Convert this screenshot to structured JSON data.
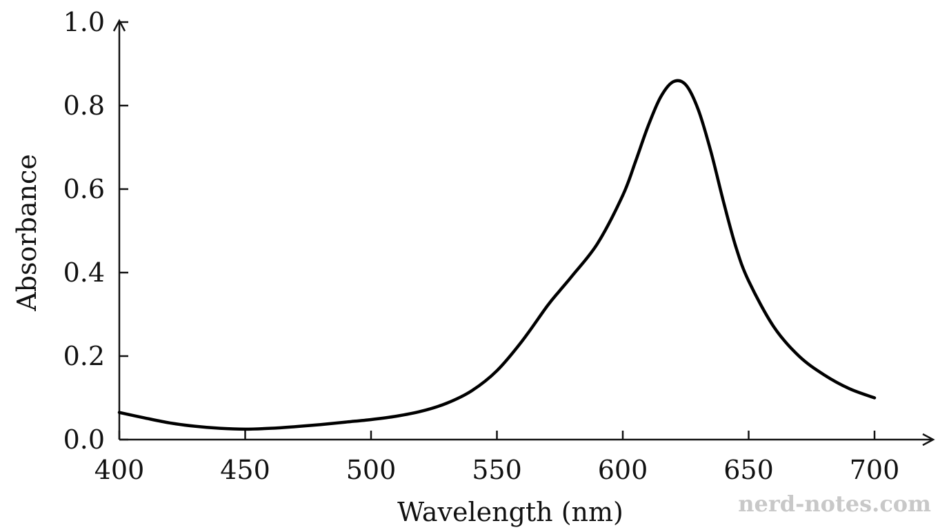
{
  "watermark": "nerd-notes.com",
  "chart_data": {
    "type": "line",
    "title": "",
    "xlabel": "Wavelength (nm)",
    "ylabel": "Absorbance",
    "xlim": [
      400,
      700
    ],
    "ylim": [
      0.0,
      1.0
    ],
    "x_ticks": [
      400,
      450,
      500,
      550,
      600,
      650,
      700
    ],
    "y_ticks": [
      "0.0",
      "0.2",
      "0.4",
      "0.6",
      "0.8",
      "1.0"
    ],
    "grid": false,
    "legend": "none",
    "line_color": "#000000",
    "series": [
      {
        "x": [
          400,
          410,
          420,
          430,
          440,
          450,
          460,
          470,
          480,
          490,
          500,
          510,
          520,
          530,
          540,
          550,
          560,
          570,
          575,
          580,
          590,
          600,
          605,
          610,
          615,
          620,
          625,
          630,
          635,
          640,
          645,
          650,
          660,
          670,
          680,
          690,
          700
        ],
        "y": [
          0.065,
          0.052,
          0.04,
          0.032,
          0.027,
          0.025,
          0.027,
          0.031,
          0.036,
          0.042,
          0.048,
          0.056,
          0.068,
          0.087,
          0.117,
          0.165,
          0.236,
          0.32,
          0.357,
          0.393,
          0.47,
          0.585,
          0.665,
          0.75,
          0.82,
          0.857,
          0.85,
          0.79,
          0.69,
          0.57,
          0.46,
          0.38,
          0.27,
          0.2,
          0.155,
          0.122,
          0.1
        ]
      }
    ]
  }
}
